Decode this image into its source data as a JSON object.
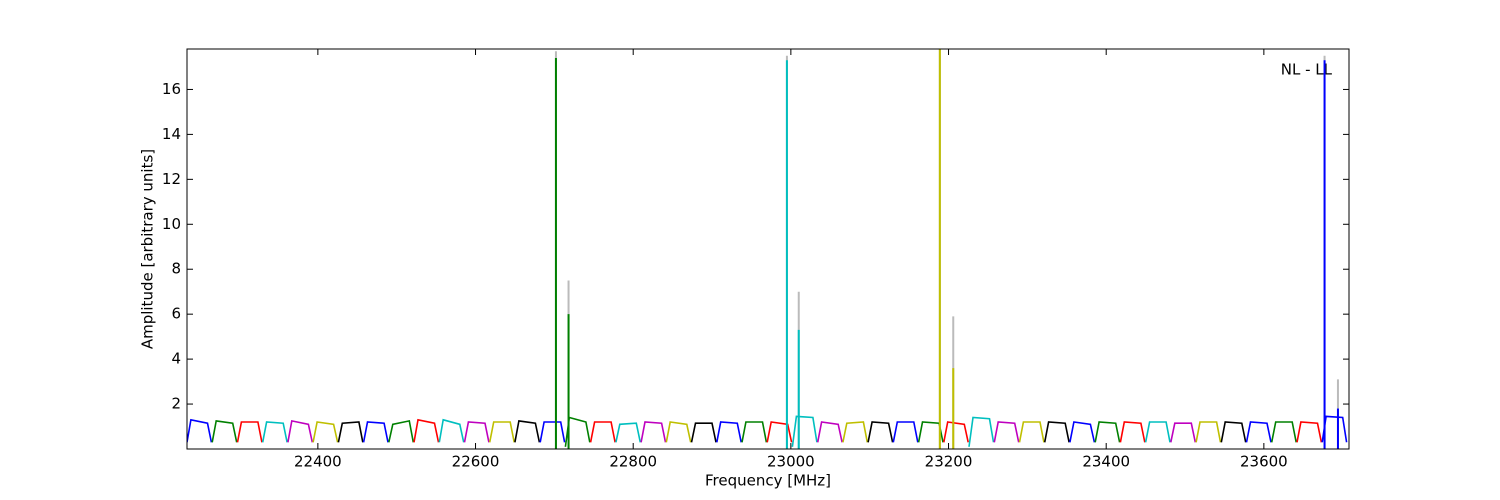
{
  "chart_data": {
    "type": "line",
    "xlabel": "Frequency [MHz]",
    "ylabel": "Amplitude [arbitrary units]",
    "annotation": "NL - LL",
    "xlim": [
      22234,
      23708
    ],
    "ylim": [
      0,
      17.8
    ],
    "xticks": [
      22400,
      22600,
      22800,
      23000,
      23200,
      23400,
      23600
    ],
    "yticks": [
      2,
      4,
      6,
      8,
      10,
      12,
      14,
      16
    ],
    "series": [
      {
        "color": "#0000ff",
        "x": [
          22234,
          22239,
          22260,
          22265
        ],
        "values": [
          0.3,
          1.3,
          1.15,
          0.3
        ]
      },
      {
        "color": "#008000",
        "x": [
          22266,
          22271,
          22292,
          22297
        ],
        "values": [
          0.3,
          1.25,
          1.15,
          0.3
        ]
      },
      {
        "color": "#ff0000",
        "x": [
          22298,
          22303,
          22324,
          22329
        ],
        "values": [
          0.3,
          1.2,
          1.2,
          0.3
        ]
      },
      {
        "color": "#00bfbf",
        "x": [
          22330,
          22335,
          22356,
          22361
        ],
        "values": [
          0.3,
          1.2,
          1.15,
          0.3
        ]
      },
      {
        "color": "#bf00bf",
        "x": [
          22362,
          22367,
          22388,
          22393
        ],
        "values": [
          0.3,
          1.25,
          1.1,
          0.3
        ]
      },
      {
        "color": "#bfbf00",
        "x": [
          22394,
          22399,
          22420,
          22425
        ],
        "values": [
          0.3,
          1.2,
          1.1,
          0.3
        ]
      },
      {
        "color": "#000000",
        "x": [
          22426,
          22431,
          22452,
          22457
        ],
        "values": [
          0.3,
          1.15,
          1.2,
          0.3
        ]
      },
      {
        "color": "#0000ff",
        "x": [
          22458,
          22463,
          22484,
          22489
        ],
        "values": [
          0.3,
          1.2,
          1.15,
          0.3
        ]
      },
      {
        "color": "#008000",
        "x": [
          22490,
          22495,
          22516,
          22521
        ],
        "values": [
          0.3,
          1.1,
          1.25,
          0.3
        ]
      },
      {
        "color": "#ff0000",
        "x": [
          22522,
          22527,
          22548,
          22553
        ],
        "values": [
          0.3,
          1.3,
          1.15,
          0.3
        ]
      },
      {
        "color": "#00bfbf",
        "x": [
          22554,
          22559,
          22580,
          22585
        ],
        "values": [
          0.3,
          1.3,
          1.1,
          0.3
        ]
      },
      {
        "color": "#bf00bf",
        "x": [
          22586,
          22591,
          22612,
          22617
        ],
        "values": [
          0.3,
          1.2,
          1.15,
          0.3
        ]
      },
      {
        "color": "#bfbf00",
        "x": [
          22618,
          22623,
          22644,
          22649
        ],
        "values": [
          0.3,
          1.2,
          1.2,
          0.3
        ]
      },
      {
        "color": "#000000",
        "x": [
          22650,
          22655,
          22676,
          22681
        ],
        "values": [
          0.3,
          1.25,
          1.15,
          0.3
        ]
      },
      {
        "color": "#0000ff",
        "x": [
          22682,
          22687,
          22708,
          22713
        ],
        "values": [
          0.3,
          1.2,
          1.2,
          0.3
        ]
      },
      {
        "color": "#008000",
        "x": [
          22714,
          22719,
          22740,
          22745
        ],
        "values": [
          0.1,
          1.4,
          1.2,
          0.3
        ]
      },
      {
        "color": "#ff0000",
        "x": [
          22746,
          22751,
          22772,
          22777
        ],
        "values": [
          0.3,
          1.2,
          1.2,
          0.3
        ]
      },
      {
        "color": "#00bfbf",
        "x": [
          22778,
          22783,
          22804,
          22809
        ],
        "values": [
          0.3,
          1.1,
          1.15,
          0.3
        ]
      },
      {
        "color": "#bf00bf",
        "x": [
          22810,
          22815,
          22836,
          22841
        ],
        "values": [
          0.3,
          1.2,
          1.15,
          0.3
        ]
      },
      {
        "color": "#bfbf00",
        "x": [
          22842,
          22847,
          22868,
          22873
        ],
        "values": [
          0.3,
          1.2,
          1.1,
          0.3
        ]
      },
      {
        "color": "#000000",
        "x": [
          22874,
          22879,
          22900,
          22905
        ],
        "values": [
          0.3,
          1.15,
          1.15,
          0.3
        ]
      },
      {
        "color": "#0000ff",
        "x": [
          22906,
          22911,
          22932,
          22937
        ],
        "values": [
          0.3,
          1.2,
          1.15,
          0.3
        ]
      },
      {
        "color": "#008000",
        "x": [
          22938,
          22943,
          22964,
          22969
        ],
        "values": [
          0.3,
          1.2,
          1.2,
          0.3
        ]
      },
      {
        "color": "#ff0000",
        "x": [
          22970,
          22975,
          22996,
          23001
        ],
        "values": [
          0.3,
          1.2,
          1.1,
          0.3
        ]
      },
      {
        "color": "#00bfbf",
        "x": [
          23002,
          23007,
          23028,
          23033
        ],
        "values": [
          0.1,
          1.45,
          1.4,
          0.3
        ]
      },
      {
        "color": "#bf00bf",
        "x": [
          23034,
          23039,
          23060,
          23065
        ],
        "values": [
          0.3,
          1.2,
          1.1,
          0.3
        ]
      },
      {
        "color": "#bfbf00",
        "x": [
          23066,
          23071,
          23092,
          23097
        ],
        "values": [
          0.3,
          1.15,
          1.2,
          0.3
        ]
      },
      {
        "color": "#000000",
        "x": [
          23098,
          23103,
          23124,
          23129
        ],
        "values": [
          0.3,
          1.2,
          1.15,
          0.3
        ]
      },
      {
        "color": "#0000ff",
        "x": [
          23130,
          23135,
          23156,
          23161
        ],
        "values": [
          0.3,
          1.2,
          1.2,
          0.3
        ]
      },
      {
        "color": "#008000",
        "x": [
          23162,
          23167,
          23188,
          23193
        ],
        "values": [
          0.3,
          1.2,
          1.15,
          0.3
        ]
      },
      {
        "color": "#ff0000",
        "x": [
          23194,
          23199,
          23220,
          23225
        ],
        "values": [
          0.3,
          1.2,
          1.1,
          0.3
        ]
      },
      {
        "color": "#00bfbf",
        "x": [
          23226,
          23231,
          23252,
          23257
        ],
        "values": [
          0.1,
          1.4,
          1.35,
          0.3
        ]
      },
      {
        "color": "#bf00bf",
        "x": [
          23258,
          23263,
          23284,
          23289
        ],
        "values": [
          0.3,
          1.2,
          1.15,
          0.3
        ]
      },
      {
        "color": "#bfbf00",
        "x": [
          23290,
          23295,
          23316,
          23321
        ],
        "values": [
          0.3,
          1.2,
          1.2,
          0.3
        ]
      },
      {
        "color": "#000000",
        "x": [
          23322,
          23327,
          23348,
          23353
        ],
        "values": [
          0.3,
          1.2,
          1.15,
          0.3
        ]
      },
      {
        "color": "#0000ff",
        "x": [
          23354,
          23359,
          23380,
          23385
        ],
        "values": [
          0.3,
          1.2,
          1.1,
          0.3
        ]
      },
      {
        "color": "#008000",
        "x": [
          23386,
          23391,
          23412,
          23417
        ],
        "values": [
          0.3,
          1.2,
          1.15,
          0.3
        ]
      },
      {
        "color": "#ff0000",
        "x": [
          23418,
          23423,
          23444,
          23449
        ],
        "values": [
          0.3,
          1.2,
          1.15,
          0.3
        ]
      },
      {
        "color": "#00bfbf",
        "x": [
          23450,
          23455,
          23476,
          23481
        ],
        "values": [
          0.3,
          1.2,
          1.2,
          0.3
        ]
      },
      {
        "color": "#bf00bf",
        "x": [
          23482,
          23487,
          23508,
          23513
        ],
        "values": [
          0.3,
          1.15,
          1.15,
          0.3
        ]
      },
      {
        "color": "#bfbf00",
        "x": [
          23514,
          23519,
          23540,
          23545
        ],
        "values": [
          0.3,
          1.2,
          1.2,
          0.3
        ]
      },
      {
        "color": "#000000",
        "x": [
          23546,
          23551,
          23572,
          23577
        ],
        "values": [
          0.3,
          1.2,
          1.15,
          0.3
        ]
      },
      {
        "color": "#0000ff",
        "x": [
          23578,
          23583,
          23604,
          23609
        ],
        "values": [
          0.3,
          1.2,
          1.15,
          0.3
        ]
      },
      {
        "color": "#008000",
        "x": [
          23610,
          23615,
          23636,
          23641
        ],
        "values": [
          0.3,
          1.2,
          1.2,
          0.3
        ]
      },
      {
        "color": "#ff0000",
        "x": [
          23642,
          23647,
          23668,
          23673
        ],
        "values": [
          0.3,
          1.2,
          1.15,
          0.3
        ]
      },
      {
        "color": "#0000ff",
        "x": [
          23674,
          23679,
          23700,
          23705
        ],
        "values": [
          0.3,
          1.45,
          1.4,
          0.3
        ]
      }
    ],
    "reference_spikes": [
      {
        "color": "#bbbbbb",
        "x": 22702,
        "value": 17.7
      },
      {
        "color": "#bbbbbb",
        "x": 22718,
        "value": 7.5
      },
      {
        "color": "#bbbbbb",
        "x": 22995,
        "value": 17.5
      },
      {
        "color": "#bbbbbb",
        "x": 23010,
        "value": 7.0
      },
      {
        "color": "#bbbbbb",
        "x": 23189,
        "value": 17.8
      },
      {
        "color": "#bbbbbb",
        "x": 23206,
        "value": 5.9
      },
      {
        "color": "#bbbbbb",
        "x": 23677,
        "value": 17.5
      },
      {
        "color": "#bbbbbb",
        "x": 23694,
        "value": 3.1
      }
    ],
    "spikes": [
      {
        "color": "#008000",
        "x": 22702,
        "value": 17.4
      },
      {
        "color": "#008000",
        "x": 22718,
        "value": 6.0
      },
      {
        "color": "#00bfbf",
        "x": 22995,
        "value": 17.3
      },
      {
        "color": "#00bfbf",
        "x": 23010,
        "value": 5.3
      },
      {
        "color": "#bfbf00",
        "x": 23189,
        "value": 17.8
      },
      {
        "color": "#bfbf00",
        "x": 23206,
        "value": 3.6
      },
      {
        "color": "#0000ff",
        "x": 23677,
        "value": 17.3
      },
      {
        "color": "#0000ff",
        "x": 23694,
        "value": 1.8
      }
    ]
  }
}
